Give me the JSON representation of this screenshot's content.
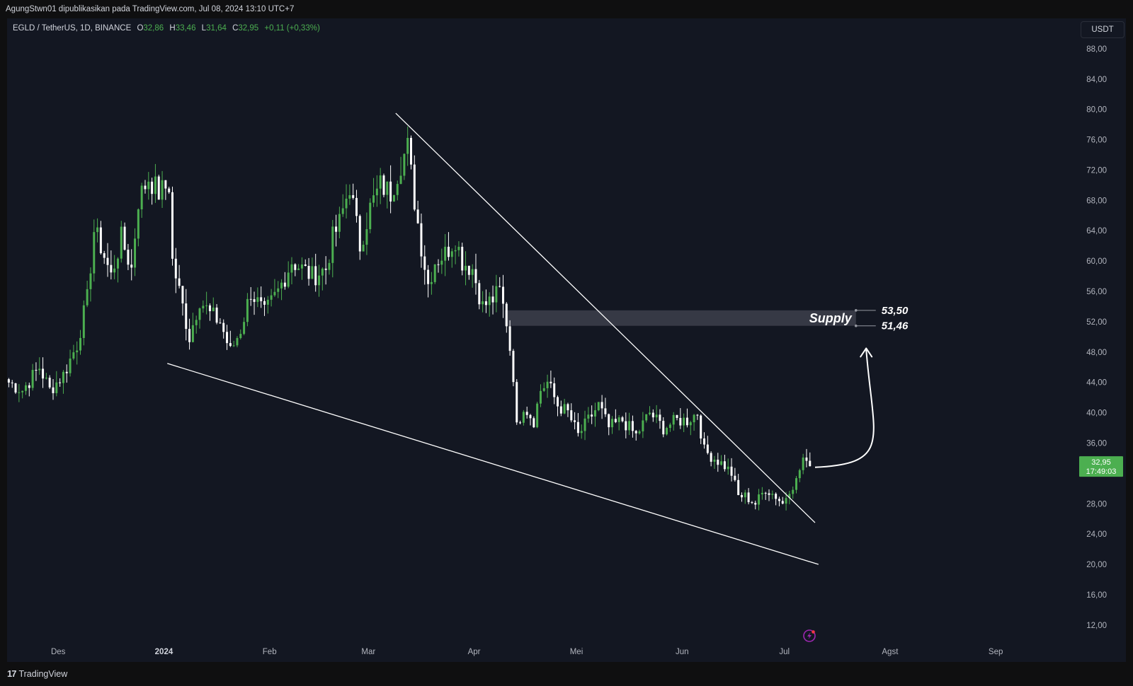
{
  "header": {
    "credit": "AgungStwn01 dipublikasikan pada TradingView.com, Jul 08, 2024 13:10 UTC+7"
  },
  "legend": {
    "symbol": "EGLD / TetherUS, 1D, BINANCE",
    "open_label": "O",
    "open": "32,86",
    "high_label": "H",
    "high": "33,46",
    "low_label": "L",
    "low": "31,64",
    "close_label": "C",
    "close": "32,95",
    "change": "+0,11 (+0,33%)"
  },
  "currency": "USDT",
  "last_price": {
    "price": "32,95",
    "countdown": "17:49:03"
  },
  "footer": {
    "brand": "TradingView"
  },
  "colors": {
    "up": "#4caf50",
    "down": "#ffffff",
    "background": "#131722",
    "supply_zone": "#434651",
    "price_tag": "#4caf50"
  },
  "icons": {
    "lightning": "lightning-icon",
    "logo": "tradingview-logo-icon"
  },
  "chart_data": {
    "type": "candlestick",
    "symbol": "EGLD / TetherUS",
    "interval": "1D",
    "exchange": "BINANCE",
    "y_axis": {
      "ticks": [
        12,
        16,
        20,
        24,
        28,
        32,
        36,
        40,
        44,
        48,
        52,
        56,
        60,
        64,
        68,
        72,
        76,
        80,
        84,
        88
      ],
      "labels": [
        "12,00",
        "16,00",
        "20,00",
        "24,00",
        "28,00",
        "32,00",
        "36,00",
        "40,00",
        "44,00",
        "48,00",
        "52,00",
        "56,00",
        "60,00",
        "64,00",
        "68,00",
        "72,00",
        "76,00",
        "80,00",
        "84,00",
        "88,00"
      ],
      "hidden_label_values": [
        32
      ],
      "range": [
        9,
        92
      ]
    },
    "x_axis": {
      "labels": [
        {
          "date": "2023-12-01",
          "label": "Des",
          "bold": false
        },
        {
          "date": "2024-01-01",
          "label": "2024",
          "bold": true
        },
        {
          "date": "2024-02-01",
          "label": "Feb",
          "bold": false
        },
        {
          "date": "2024-03-01",
          "label": "Mar",
          "bold": false
        },
        {
          "date": "2024-04-01",
          "label": "Apr",
          "bold": false
        },
        {
          "date": "2024-05-01",
          "label": "Mei",
          "bold": false
        },
        {
          "date": "2024-06-01",
          "label": "Jun",
          "bold": false
        },
        {
          "date": "2024-07-01",
          "label": "Jul",
          "bold": false
        },
        {
          "date": "2024-08-01",
          "label": "Agst",
          "bold": false
        },
        {
          "date": "2024-09-01",
          "label": "Sep",
          "bold": false
        }
      ],
      "range": [
        "2023-11-16",
        "2024-09-18"
      ]
    },
    "grid": false,
    "close_path": [
      [
        "2023-11-16",
        44
      ],
      [
        "2023-11-20",
        43
      ],
      [
        "2023-11-25",
        46
      ],
      [
        "2023-11-28",
        43
      ],
      [
        "2023-12-02",
        45
      ],
      [
        "2023-12-06",
        49
      ],
      [
        "2023-12-09",
        55
      ],
      [
        "2023-12-11",
        64
      ],
      [
        "2023-12-13",
        62
      ],
      [
        "2023-12-16",
        58
      ],
      [
        "2023-12-19",
        63
      ],
      [
        "2023-12-22",
        59
      ],
      [
        "2023-12-24",
        68
      ],
      [
        "2023-12-27",
        71
      ],
      [
        "2023-12-30",
        69
      ],
      [
        "2024-01-02",
        70
      ],
      [
        "2024-01-03",
        60
      ],
      [
        "2024-01-06",
        54
      ],
      [
        "2024-01-08",
        50
      ],
      [
        "2024-01-11",
        55
      ],
      [
        "2024-01-14",
        53
      ],
      [
        "2024-01-17",
        52
      ],
      [
        "2024-01-20",
        48
      ],
      [
        "2024-01-23",
        51
      ],
      [
        "2024-01-26",
        56
      ],
      [
        "2024-01-30",
        53
      ],
      [
        "2024-02-03",
        56
      ],
      [
        "2024-02-07",
        60
      ],
      [
        "2024-02-10",
        59
      ],
      [
        "2024-02-13",
        58
      ],
      [
        "2024-02-17",
        59
      ],
      [
        "2024-02-19",
        63
      ],
      [
        "2024-02-21",
        65
      ],
      [
        "2024-02-24",
        70
      ],
      [
        "2024-02-27",
        62
      ],
      [
        "2024-03-01",
        67
      ],
      [
        "2024-03-04",
        70
      ],
      [
        "2024-03-07",
        69
      ],
      [
        "2024-03-10",
        73
      ],
      [
        "2024-03-12",
        75
      ],
      [
        "2024-03-14",
        68
      ],
      [
        "2024-03-16",
        62
      ],
      [
        "2024-03-18",
        57
      ],
      [
        "2024-03-20",
        60
      ],
      [
        "2024-03-23",
        61
      ],
      [
        "2024-03-26",
        63
      ],
      [
        "2024-03-28",
        60
      ],
      [
        "2024-03-31",
        59
      ],
      [
        "2024-04-03",
        54
      ],
      [
        "2024-04-06",
        55
      ],
      [
        "2024-04-08",
        56
      ],
      [
        "2024-04-10",
        52
      ],
      [
        "2024-04-12",
        45
      ],
      [
        "2024-04-13",
        38
      ],
      [
        "2024-04-15",
        41
      ],
      [
        "2024-04-18",
        39
      ],
      [
        "2024-04-20",
        43
      ],
      [
        "2024-04-22",
        44
      ],
      [
        "2024-04-25",
        41
      ],
      [
        "2024-04-28",
        40
      ],
      [
        "2024-05-01",
        37
      ],
      [
        "2024-05-04",
        39
      ],
      [
        "2024-05-07",
        41
      ],
      [
        "2024-05-10",
        38
      ],
      [
        "2024-05-14",
        39
      ],
      [
        "2024-05-18",
        37
      ],
      [
        "2024-05-22",
        40
      ],
      [
        "2024-05-26",
        38
      ],
      [
        "2024-05-30",
        39
      ],
      [
        "2024-06-02",
        39
      ],
      [
        "2024-06-05",
        40
      ],
      [
        "2024-06-07",
        35
      ],
      [
        "2024-06-10",
        34
      ],
      [
        "2024-06-13",
        33
      ],
      [
        "2024-06-15",
        32
      ],
      [
        "2024-06-17",
        29
      ],
      [
        "2024-06-19",
        29
      ],
      [
        "2024-06-22",
        28
      ],
      [
        "2024-06-25",
        30
      ],
      [
        "2024-06-28",
        29
      ],
      [
        "2024-06-30",
        28
      ],
      [
        "2024-07-02",
        30
      ],
      [
        "2024-07-04",
        31
      ],
      [
        "2024-07-06",
        34
      ],
      [
        "2024-07-07",
        33
      ],
      [
        "2024-07-08",
        32.95
      ]
    ],
    "trendlines": [
      {
        "name": "upper-trendline",
        "from": [
          "2024-03-09",
          79.5
        ],
        "to": [
          "2024-07-10",
          25.5
        ]
      },
      {
        "name": "lower-trendline",
        "from": [
          "2024-01-02",
          46.5
        ],
        "to": [
          "2024-07-11",
          20
        ]
      }
    ],
    "zone": {
      "label": "Supply",
      "from": "2024-04-10",
      "to": "2024-07-22",
      "top": 53.5,
      "bottom": 51.46
    },
    "levels": [
      {
        "value": 53.5,
        "label": "53,50"
      },
      {
        "value": 51.46,
        "label": "51,46"
      }
    ],
    "projection_arrow": {
      "from": [
        "2024-07-10",
        32.8
      ],
      "to": [
        "2024-07-25",
        48.5
      ]
    }
  }
}
